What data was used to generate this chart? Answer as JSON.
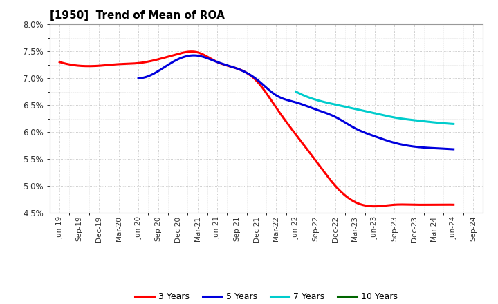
{
  "title": "[1950]  Trend of Mean of ROA",
  "x_labels": [
    "Jun-19",
    "Sep-19",
    "Dec-19",
    "Mar-20",
    "Jun-20",
    "Sep-20",
    "Dec-20",
    "Mar-21",
    "Jun-21",
    "Sep-21",
    "Dec-21",
    "Mar-22",
    "Jun-22",
    "Sep-22",
    "Dec-22",
    "Mar-23",
    "Jun-23",
    "Sep-23",
    "Dec-23",
    "Mar-24",
    "Jun-24",
    "Sep-24"
  ],
  "y_min": 0.045,
  "y_max": 0.08,
  "y_ticks": [
    0.045,
    0.05,
    0.055,
    0.06,
    0.065,
    0.07,
    0.075,
    0.08
  ],
  "series": {
    "3 Years": {
      "color": "#FF0000",
      "values": [
        0.073,
        0.0723,
        0.0723,
        0.0726,
        0.0728,
        0.0735,
        0.0745,
        0.0748,
        0.073,
        0.0718,
        0.0695,
        0.0645,
        0.0595,
        0.0547,
        0.05,
        0.047,
        0.0462,
        0.0465,
        0.0465,
        0.0465,
        0.0465,
        null
      ]
    },
    "5 Years": {
      "color": "#0000DD",
      "values": [
        null,
        null,
        null,
        null,
        0.07,
        0.0713,
        0.0735,
        0.0742,
        0.073,
        0.0718,
        0.0698,
        0.0668,
        0.0655,
        0.0642,
        0.0628,
        0.0607,
        0.0592,
        0.058,
        0.0573,
        0.057,
        0.0568,
        null
      ]
    },
    "7 Years": {
      "color": "#00CCCC",
      "values": [
        null,
        null,
        null,
        null,
        null,
        null,
        null,
        null,
        null,
        null,
        null,
        null,
        0.0675,
        0.066,
        0.0651,
        0.0643,
        0.0635,
        0.0627,
        0.0622,
        0.0618,
        0.0615,
        null
      ]
    },
    "10 Years": {
      "color": "#006600",
      "values": [
        null,
        null,
        null,
        null,
        null,
        null,
        null,
        null,
        null,
        null,
        null,
        null,
        null,
        null,
        null,
        null,
        null,
        null,
        null,
        null,
        null,
        null
      ]
    }
  },
  "legend_labels": [
    "3 Years",
    "5 Years",
    "7 Years",
    "10 Years"
  ],
  "legend_colors": [
    "#FF0000",
    "#0000DD",
    "#00CCCC",
    "#006600"
  ],
  "background_color": "#FFFFFF",
  "grid_color": "#BBBBBB"
}
